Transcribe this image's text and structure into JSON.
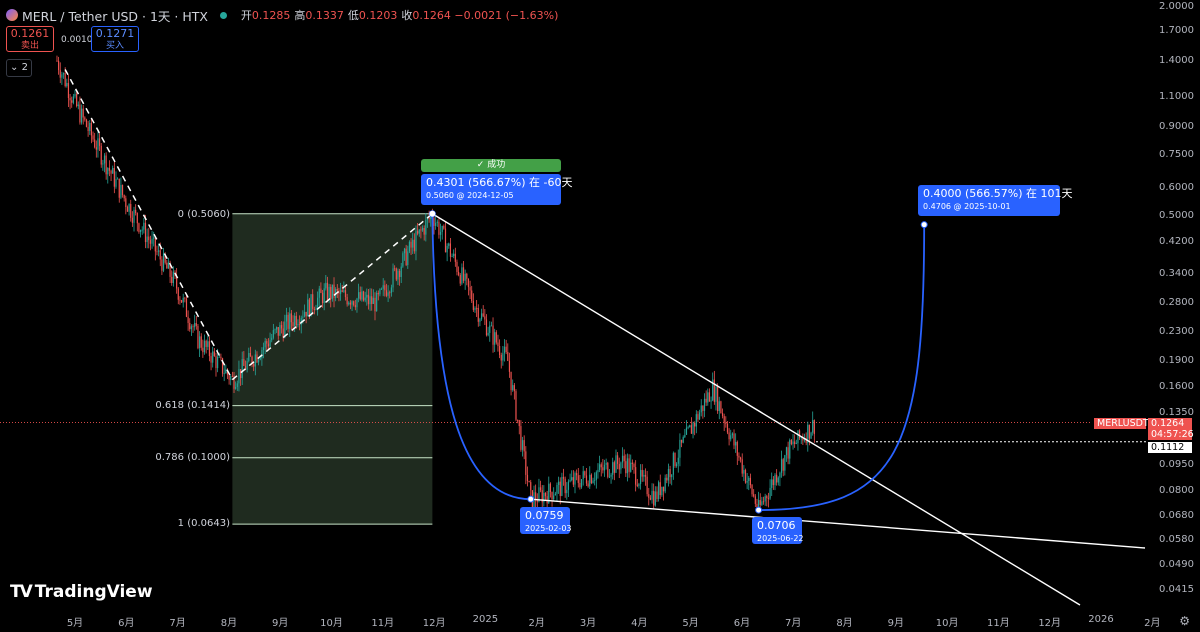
{
  "header": {
    "title": "MERL / Tether USD · 1天 · HTX",
    "ohlc": [
      {
        "k": "开",
        "v": "0.1285"
      },
      {
        "k": "高",
        "v": "0.1337"
      },
      {
        "k": "低",
        "v": "0.1203"
      },
      {
        "k": "收",
        "v": "0.1264 −0.0021 (−1.63%)"
      }
    ]
  },
  "trade": {
    "sell_price": "0.1261",
    "sell_label": "卖出",
    "spread": "0.0010",
    "buy_price": "0.1271",
    "buy_label": "买入",
    "collapse_label": "2"
  },
  "logo": {
    "text": "TradingView",
    "mark": "TV"
  },
  "settings_icon": "gear-icon",
  "colors": {
    "background": "#000000",
    "up": "#26a69a",
    "down": "#ef5350",
    "projection": "#2962ff",
    "fib_zone": "#243324",
    "success": "#43a047",
    "trendline": "#ffffff"
  },
  "chart_data": {
    "type": "candlestick",
    "symbol": "MERLUSDT",
    "interval": "1天",
    "y_scale": "log",
    "ylim": [
      0.038,
      2.0
    ],
    "y_ticks": [
      "2.0000",
      "1.7000",
      "1.4000",
      "1.1000",
      "0.9000",
      "0.7500",
      "0.6000",
      "0.5000",
      "0.4200",
      "0.3400",
      "0.2800",
      "0.2300",
      "0.1900",
      "0.1600",
      "0.1350",
      "0.0950",
      "0.0800",
      "0.0680",
      "0.0580",
      "0.0490",
      "0.0415"
    ],
    "x_ticks": [
      "5月",
      "6月",
      "7月",
      "8月",
      "9月",
      "10月",
      "11月",
      "12月",
      "2025",
      "2月",
      "3月",
      "4月",
      "5月",
      "6月",
      "7月",
      "8月",
      "9月",
      "10月",
      "11月",
      "12月",
      "2026",
      "2月"
    ],
    "price_anchors": [
      {
        "date": "2024-04-20",
        "price": 1.4
      },
      {
        "date": "2024-05-01",
        "price": 1.05
      },
      {
        "date": "2024-06-01",
        "price": 0.55
      },
      {
        "date": "2024-07-01",
        "price": 0.32
      },
      {
        "date": "2024-07-15",
        "price": 0.22
      },
      {
        "date": "2024-08-05",
        "price": 0.168
      },
      {
        "date": "2024-09-01",
        "price": 0.23
      },
      {
        "date": "2024-10-01",
        "price": 0.3
      },
      {
        "date": "2024-11-01",
        "price": 0.28
      },
      {
        "date": "2024-12-05",
        "price": 0.506
      },
      {
        "date": "2025-01-01",
        "price": 0.27
      },
      {
        "date": "2025-01-20",
        "price": 0.19
      },
      {
        "date": "2025-02-03",
        "price": 0.0759
      },
      {
        "date": "2025-03-01",
        "price": 0.085
      },
      {
        "date": "2025-04-01",
        "price": 0.098
      },
      {
        "date": "2025-04-20",
        "price": 0.077
      },
      {
        "date": "2025-05-25",
        "price": 0.16
      },
      {
        "date": "2025-06-22",
        "price": 0.0706
      },
      {
        "date": "2025-07-10",
        "price": 0.105
      },
      {
        "date": "2025-07-27",
        "price": 0.1264
      }
    ],
    "last": {
      "symbol": "MERLUSDT",
      "price": "0.1264",
      "countdown": "04:57:26",
      "marker": "0.1112"
    },
    "fibonacci": [
      {
        "level": "0",
        "price": 0.506,
        "label": "0 (0.5060)"
      },
      {
        "level": "0.618",
        "price": 0.1414,
        "label": "0.618 (0.1414)"
      },
      {
        "level": "0.786",
        "price": 0.1,
        "label": "0.786 (0.1000)"
      },
      {
        "level": "1",
        "price": 0.0643,
        "label": "1 (0.0643)"
      }
    ],
    "annotations": {
      "success": "✓ 成功",
      "top": {
        "line1": "0.4301 (566.67%) 在 -60天",
        "line2": "0.5060 @ 2024-12-05"
      },
      "low1": {
        "line1": "0.0759",
        "line2": "2025-02-03"
      },
      "low2": {
        "line1": "0.0706",
        "line2": "2025-06-22"
      },
      "target": {
        "line1": "0.4000 (566.57%) 在 101天",
        "line2": "0.4706 @ 2025-10-01"
      }
    }
  }
}
